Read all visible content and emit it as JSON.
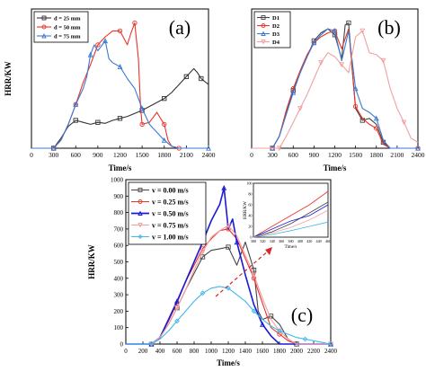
{
  "chart_data": [
    {
      "panel_label": "(a)",
      "type": "line",
      "xlabel": "Time/s",
      "ylabel": "HRR/KW",
      "x_ticks": [
        "0",
        "300",
        "600",
        "900",
        "1200",
        "1500",
        "1800",
        "2100",
        "2400"
      ],
      "xlim": [
        0,
        2400
      ],
      "ylim": [
        0,
        700
      ],
      "legend_position": "top-left",
      "series": [
        {
          "name": "d = 25 mm",
          "color": "#333333",
          "marker": "square",
          "x": [
            0,
            300,
            400,
            500,
            600,
            700,
            800,
            900,
            1000,
            1100,
            1200,
            1300,
            1400,
            1500,
            1600,
            1700,
            1800,
            1900,
            2000,
            2100,
            2200,
            2250,
            2300,
            2400
          ],
          "y": [
            0,
            0,
            50,
            110,
            140,
            130,
            120,
            130,
            125,
            140,
            150,
            160,
            175,
            190,
            210,
            230,
            250,
            280,
            320,
            360,
            400,
            380,
            350,
            320
          ]
        },
        {
          "name": "d = 50 mm",
          "color": "#e8342a",
          "marker": "circle",
          "x": [
            0,
            300,
            400,
            500,
            600,
            700,
            800,
            900,
            1000,
            1100,
            1200,
            1300,
            1350,
            1400,
            1450,
            1480,
            1500,
            1600,
            1700,
            1800,
            1850,
            1900,
            2000,
            2100,
            2400
          ],
          "y": [
            0,
            0,
            40,
            120,
            220,
            330,
            420,
            520,
            560,
            590,
            590,
            520,
            580,
            630,
            450,
            200,
            120,
            130,
            180,
            120,
            40,
            10,
            0,
            0,
            0
          ]
        },
        {
          "name": "d = 75 mm",
          "color": "#3a79d4",
          "marker": "triangle",
          "x": [
            0,
            300,
            400,
            500,
            600,
            700,
            750,
            800,
            850,
            900,
            1000,
            1050,
            1100,
            1200,
            1300,
            1400,
            1500,
            1600,
            1700,
            1800,
            1900,
            2000,
            2400
          ],
          "y": [
            0,
            0,
            40,
            120,
            220,
            300,
            360,
            470,
            520,
            490,
            540,
            450,
            430,
            410,
            350,
            300,
            200,
            120,
            80,
            40,
            10,
            0,
            0
          ]
        }
      ]
    },
    {
      "panel_label": "(b)",
      "type": "line",
      "xlabel": "Time/s",
      "ylabel": "",
      "x_ticks": [
        "0",
        "300",
        "600",
        "900",
        "1200",
        "1500",
        "1800",
        "2100",
        "2400"
      ],
      "xlim": [
        0,
        2400
      ],
      "ylim": [
        0,
        700
      ],
      "legend_position": "top-left",
      "series": [
        {
          "name": "D1",
          "color": "#444444",
          "marker": "square",
          "x": [
            0,
            300,
            400,
            500,
            600,
            700,
            800,
            900,
            1000,
            1100,
            1200,
            1300,
            1350,
            1400,
            1450,
            1500,
            1600,
            1700,
            1800,
            1900,
            2000,
            2400
          ],
          "y": [
            0,
            0,
            60,
            180,
            290,
            380,
            460,
            540,
            580,
            600,
            570,
            450,
            620,
            630,
            400,
            200,
            140,
            150,
            120,
            30,
            0,
            0
          ]
        },
        {
          "name": "D2",
          "color": "#e8342a",
          "marker": "circle",
          "x": [
            0,
            300,
            400,
            500,
            600,
            700,
            800,
            900,
            1000,
            1100,
            1200,
            1300,
            1400,
            1500,
            1600,
            1700,
            1800,
            1900,
            2000,
            2400
          ],
          "y": [
            0,
            0,
            60,
            190,
            300,
            390,
            470,
            530,
            560,
            580,
            590,
            500,
            600,
            210,
            150,
            120,
            100,
            20,
            0,
            0
          ]
        },
        {
          "name": "D3",
          "color": "#3a79d4",
          "marker": "triangle",
          "x": [
            0,
            300,
            400,
            500,
            600,
            700,
            800,
            900,
            1000,
            1100,
            1200,
            1300,
            1400,
            1500,
            1600,
            1700,
            1800,
            1900,
            2000,
            2400
          ],
          "y": [
            0,
            0,
            60,
            170,
            280,
            380,
            460,
            530,
            570,
            600,
            590,
            440,
            590,
            300,
            200,
            180,
            150,
            40,
            0,
            0
          ]
        },
        {
          "name": "D4",
          "color": "#f2a0a0",
          "marker": "triangle-down",
          "x": [
            0,
            400,
            500,
            600,
            700,
            800,
            900,
            1000,
            1100,
            1200,
            1300,
            1400,
            1500,
            1600,
            1700,
            1800,
            1900,
            2000,
            2100,
            2200,
            2300,
            2400
          ],
          "y": [
            0,
            0,
            60,
            130,
            200,
            270,
            350,
            430,
            480,
            460,
            420,
            380,
            560,
            590,
            480,
            470,
            440,
            300,
            200,
            130,
            50,
            30
          ]
        }
      ]
    },
    {
      "panel_label": "(c)",
      "type": "line",
      "xlabel": "Time/s",
      "ylabel": "HRR/KW",
      "x_ticks": [
        "0",
        "200",
        "400",
        "600",
        "800",
        "1000",
        "1200",
        "1400",
        "1600",
        "1800",
        "2000",
        "2200",
        "2400"
      ],
      "y_ticks": [
        "0",
        "100",
        "200",
        "300",
        "400",
        "500",
        "600",
        "700",
        "800",
        "900",
        "1000"
      ],
      "xlim": [
        0,
        2400
      ],
      "ylim": [
        0,
        1000
      ],
      "legend_position": "top-left",
      "series": [
        {
          "name": "v = 0.00 m/s",
          "color": "#444444",
          "marker": "square",
          "x": [
            0,
            300,
            400,
            500,
            600,
            700,
            800,
            900,
            1000,
            1100,
            1200,
            1300,
            1400,
            1500,
            1550,
            1600,
            1700,
            1800,
            1900,
            2000,
            2400
          ],
          "y": [
            0,
            0,
            40,
            120,
            220,
            330,
            430,
            530,
            570,
            580,
            590,
            480,
            620,
            450,
            200,
            150,
            170,
            120,
            30,
            0,
            0
          ]
        },
        {
          "name": "v = 0.25 m/s",
          "color": "#e8342a",
          "marker": "circle",
          "x": [
            0,
            300,
            400,
            500,
            600,
            700,
            800,
            900,
            1000,
            1100,
            1200,
            1300,
            1400,
            1500,
            1600,
            1700,
            1800,
            1900,
            2000,
            2400
          ],
          "y": [
            0,
            0,
            40,
            140,
            250,
            380,
            480,
            580,
            640,
            690,
            700,
            640,
            520,
            400,
            250,
            100,
            60,
            20,
            0,
            0
          ]
        },
        {
          "name": "v = 0.50 m/s",
          "color": "#1a1ad6",
          "marker": "triangle",
          "x": [
            0,
            300,
            400,
            500,
            600,
            700,
            800,
            900,
            1000,
            1100,
            1150,
            1200,
            1250,
            1300,
            1400,
            1500,
            1600,
            1700,
            1800,
            2400
          ],
          "y": [
            0,
            0,
            40,
            150,
            260,
            380,
            500,
            620,
            750,
            850,
            950,
            700,
            760,
            620,
            420,
            240,
            120,
            50,
            0,
            0
          ]
        },
        {
          "name": "v = 0.75 m/s",
          "color": "#f2a0a0",
          "marker": "triangle-down",
          "x": [
            0,
            300,
            400,
            500,
            600,
            700,
            800,
            900,
            1000,
            1100,
            1200,
            1300,
            1400,
            1500,
            1600,
            1700,
            1800,
            1900,
            2000,
            2400
          ],
          "y": [
            0,
            0,
            40,
            120,
            220,
            330,
            450,
            560,
            650,
            690,
            720,
            660,
            540,
            420,
            280,
            150,
            80,
            30,
            0,
            0
          ]
        },
        {
          "name": "v = 1.00 m/s",
          "color": "#40b8e8",
          "marker": "diamond",
          "x": [
            0,
            300,
            400,
            500,
            600,
            700,
            800,
            900,
            1000,
            1100,
            1200,
            1300,
            1400,
            1500,
            1600,
            1700,
            1800,
            1900,
            2000,
            2100,
            2200,
            2300,
            2400
          ],
          "y": [
            0,
            0,
            30,
            80,
            140,
            200,
            260,
            310,
            340,
            350,
            340,
            300,
            260,
            200,
            150,
            110,
            80,
            60,
            40,
            30,
            20,
            10,
            0
          ]
        }
      ],
      "inset": {
        "xlabel": "Time/s",
        "ylabel": "HRR/KW",
        "x_ticks": [
          "300",
          "320",
          "340",
          "360",
          "380",
          "400",
          "420",
          "440",
          "460"
        ],
        "y_ticks": [
          "0",
          "20",
          "40",
          "60",
          "80",
          "100"
        ],
        "xlim": [
          300,
          460
        ],
        "ylim": [
          0,
          100
        ]
      }
    }
  ]
}
